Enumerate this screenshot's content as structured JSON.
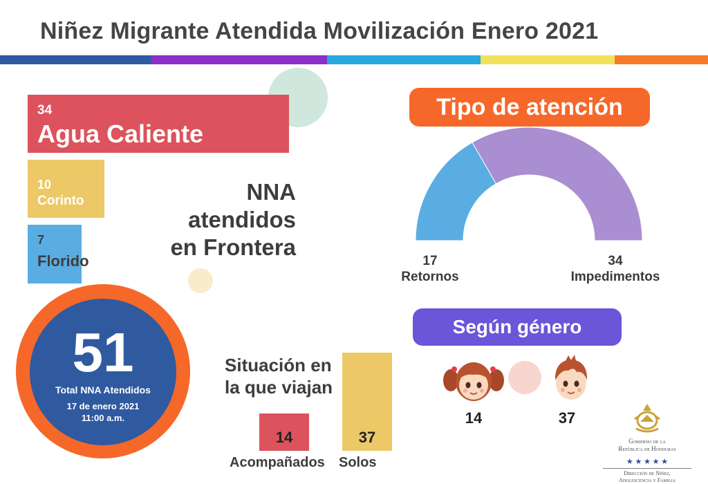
{
  "title": "Niñez Migrante Atendida Movilización Enero 2021",
  "colors": {
    "stripe": [
      "#2e5aa3",
      "#8a2fc9",
      "#29a8df",
      "#f2e25a",
      "#f57b2a"
    ],
    "red": "#dc535d",
    "yellow": "#ecc867",
    "blue": "#5aade3",
    "purple": "#a98ed1",
    "orange": "#f5682a",
    "navy": "#2f5aa0",
    "violet": "#6b55d8"
  },
  "frontera": {
    "heading_lines": [
      "NNA",
      "atendidos",
      "en Frontera"
    ]
  },
  "total": {
    "value": "51",
    "label": "Total NNA Atendidos",
    "date": "17 de enero 2021",
    "time": "11:00 a.m."
  },
  "tipo": {
    "heading": "Tipo de atención"
  },
  "genero": {
    "heading": "Según género",
    "girls_icon": "girl-icon",
    "boys_icon": "boy-icon"
  },
  "situacion": {
    "heading_lines": [
      "Situación en",
      "la que viajan"
    ]
  },
  "logo": {
    "emblem_icon": "honduras-coat-of-arms-icon",
    "line1": "Gobierno de la",
    "line2": "República de Honduras",
    "stars": "★ ★ ★ ★ ★",
    "line3": "Dirección de Niñez,",
    "line4": "Adolescencia y Familia"
  },
  "chart_data": [
    {
      "type": "bar",
      "orientation": "horizontal",
      "categories": [
        "Agua Caliente",
        "Corinto",
        "Florido"
      ],
      "values": [
        34,
        10,
        7
      ]
    },
    {
      "type": "pie",
      "style": "half-donut",
      "categories": [
        "Retornos",
        "Impedimentos"
      ],
      "values": [
        17,
        34
      ]
    },
    {
      "type": "bar",
      "categories": [
        "Acompañados",
        "Solos"
      ],
      "values": [
        14,
        37
      ]
    },
    {
      "type": "table",
      "categories": [
        "girls",
        "boys"
      ],
      "values": [
        14,
        37
      ]
    }
  ]
}
